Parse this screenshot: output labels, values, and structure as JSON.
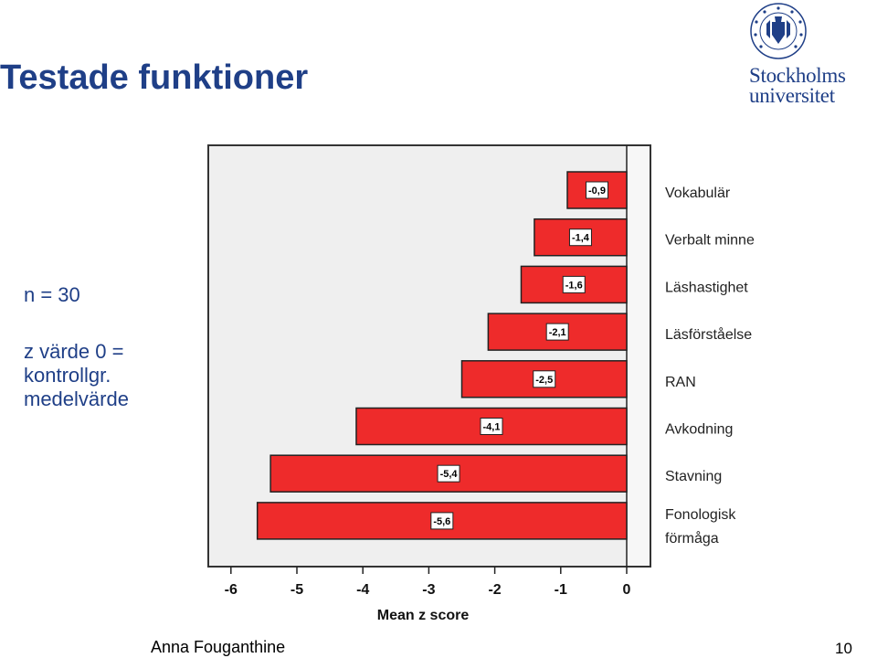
{
  "slide": {
    "title": "Testade funktioner",
    "note_n": "n = 30",
    "note_z": [
      "z värde 0 =",
      "kontrollgr.",
      "medelvärde"
    ],
    "author": "Anna Fouganthine",
    "page_number": "10"
  },
  "logo": {
    "name_line1": "Stockholms",
    "name_line2": "universitet",
    "seal_text": "UNIVERSITET STOCKHOLMS"
  },
  "colors": {
    "brand": "#1f3f87",
    "bar_fill": "#ee2b2b",
    "plot_bg": "#efefef"
  },
  "chart_data": {
    "type": "bar",
    "orientation": "horizontal",
    "categories": [
      "Vokabulär",
      "Verbalt minne",
      "Läshastighet",
      "Läsförståelse",
      "RAN",
      "Avkodning",
      "Stavning",
      "Fonologisk förmåga"
    ],
    "values": [
      -0.9,
      -1.4,
      -1.6,
      -2.1,
      -2.5,
      -4.1,
      -5.4,
      -5.6
    ],
    "data_labels": [
      "-0,9",
      "-1,4",
      "-1,6",
      "-2,1",
      "-2,5",
      "-4,1",
      "-5,4",
      "-5,6"
    ],
    "xlabel": "Mean z score",
    "xticks": [
      -6,
      -5,
      -4,
      -3,
      -2,
      -1,
      0
    ],
    "xlim": [
      -6.4,
      0
    ],
    "grid": false
  }
}
